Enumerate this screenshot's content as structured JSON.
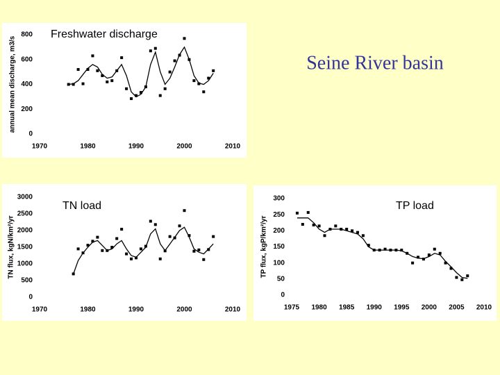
{
  "slide_title": "Seine River basin",
  "chart_data": [
    {
      "type": "scatter",
      "title": "Freshwater discharge",
      "y_label": "annual mean discharge, m3/s",
      "x": [
        1976,
        1977,
        1978,
        1979,
        1980,
        1981,
        1982,
        1983,
        1984,
        1985,
        1986,
        1987,
        1988,
        1989,
        1990,
        1991,
        1992,
        1993,
        1994,
        1995,
        1996,
        1997,
        1998,
        1999,
        2000,
        2001,
        2002,
        2003,
        2004,
        2005,
        2006
      ],
      "values": [
        400,
        400,
        520,
        405,
        520,
        630,
        510,
        470,
        420,
        430,
        510,
        615,
        365,
        285,
        310,
        335,
        380,
        670,
        690,
        310,
        365,
        500,
        590,
        635,
        770,
        600,
        430,
        405,
        340,
        450,
        510
      ],
      "trend": [
        400,
        405,
        430,
        480,
        530,
        560,
        540,
        480,
        450,
        460,
        510,
        560,
        470,
        340,
        300,
        320,
        380,
        560,
        660,
        500,
        400,
        450,
        540,
        640,
        700,
        600,
        470,
        410,
        400,
        430,
        490
      ],
      "color": "#000000",
      "xlim": [
        1970,
        2010
      ],
      "xticks": [
        1970,
        1980,
        1990,
        2000,
        2010
      ],
      "ylim": [
        0,
        800
      ],
      "yticks": [
        0,
        200,
        400,
        600,
        800
      ]
    },
    {
      "type": "scatter",
      "title": "TN load",
      "y_label": "TN flux, kgN/km²/yr",
      "x": [
        1977,
        1978,
        1979,
        1980,
        1981,
        1982,
        1983,
        1984,
        1985,
        1986,
        1987,
        1988,
        1989,
        1990,
        1991,
        1992,
        1993,
        1994,
        1995,
        1996,
        1997,
        1998,
        1999,
        2000,
        2001,
        2002,
        2003,
        2004,
        2005,
        2006
      ],
      "values": [
        700,
        1450,
        1330,
        1560,
        1680,
        1800,
        1400,
        1400,
        1500,
        1760,
        2040,
        1300,
        1150,
        1180,
        1450,
        1530,
        2280,
        2180,
        1150,
        1390,
        1820,
        1780,
        2140,
        2600,
        1850,
        1380,
        1420,
        1130,
        1430,
        1820
      ],
      "trend": [
        700,
        1100,
        1330,
        1500,
        1650,
        1700,
        1550,
        1400,
        1450,
        1600,
        1700,
        1450,
        1250,
        1200,
        1350,
        1500,
        1900,
        2050,
        1600,
        1400,
        1600,
        1800,
        2000,
        2100,
        1800,
        1450,
        1350,
        1300,
        1450,
        1600
      ],
      "color": "#000000",
      "xlim": [
        1970,
        2010
      ],
      "xticks": [
        1970,
        1980,
        1990,
        2000,
        2010
      ],
      "ylim": [
        0,
        3000
      ],
      "yticks": [
        0,
        500,
        1000,
        1500,
        2000,
        2500,
        3000
      ]
    },
    {
      "type": "scatter",
      "title": "TP load",
      "y_label": "TP flux, kgP/km²/yr",
      "x": [
        1976,
        1977,
        1978,
        1979,
        1980,
        1981,
        1982,
        1983,
        1984,
        1985,
        1986,
        1987,
        1988,
        1989,
        1990,
        1991,
        1992,
        1993,
        1994,
        1995,
        1996,
        1997,
        1998,
        1999,
        2000,
        2001,
        2002,
        2003,
        2004,
        2005,
        2006,
        2007
      ],
      "values": [
        255,
        220,
        257,
        218,
        215,
        185,
        205,
        215,
        205,
        205,
        200,
        195,
        185,
        155,
        140,
        140,
        143,
        140,
        140,
        140,
        130,
        100,
        118,
        112,
        125,
        143,
        130,
        100,
        83,
        55,
        48,
        60
      ],
      "trend": [
        240,
        240,
        240,
        225,
        205,
        195,
        205,
        205,
        205,
        200,
        195,
        190,
        175,
        150,
        140,
        140,
        140,
        140,
        140,
        138,
        130,
        120,
        115,
        113,
        120,
        130,
        125,
        105,
        88,
        70,
        55,
        52
      ],
      "color": "#000000",
      "xlim": [
        1975,
        2010
      ],
      "xticks": [
        1975,
        1980,
        1985,
        1990,
        1995,
        2000,
        2005,
        2010
      ],
      "ylim": [
        0,
        300
      ],
      "yticks": [
        0,
        50,
        100,
        150,
        200,
        250,
        300
      ]
    }
  ]
}
